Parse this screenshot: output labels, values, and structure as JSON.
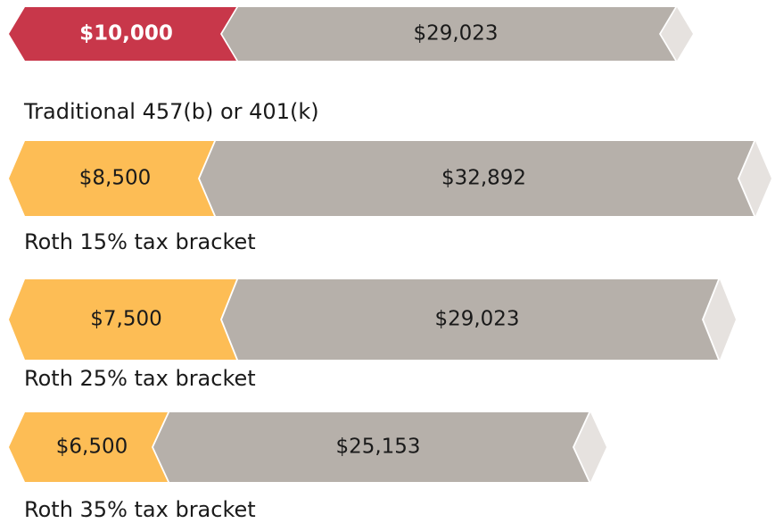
{
  "rows": [
    {
      "label": "Traditional 457(b) or 401(k)",
      "contribution": "$10,000",
      "growth": "$29,023"
    },
    {
      "label": "Roth 15% tax bracket",
      "contribution": "$8,500",
      "growth": "$32,892"
    },
    {
      "label": "Roth 25% tax bracket",
      "contribution": "$7,500",
      "growth": "$29,023"
    },
    {
      "label": "Roth 35% tax bracket",
      "contribution": "$6,500",
      "growth": "$25,153"
    }
  ]
}
